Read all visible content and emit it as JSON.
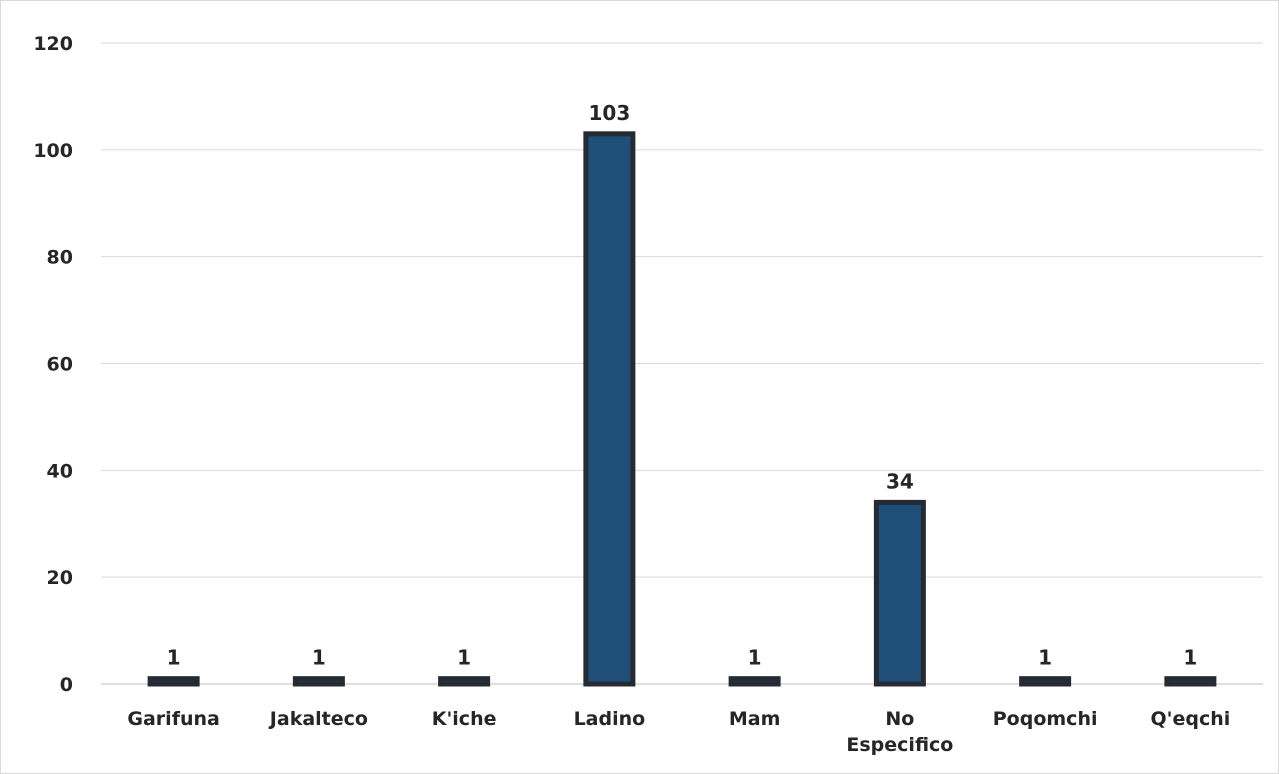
{
  "chart_data": {
    "type": "bar",
    "title": "",
    "xlabel": "",
    "ylabel": "",
    "categories": [
      "Garifuna",
      "Jakalteco",
      "K'iche",
      "Ladino",
      "Mam",
      "No Especifico",
      "Poqomchi",
      "Q'eqchi"
    ],
    "category_lines": [
      [
        "Garifuna"
      ],
      [
        "Jakalteco"
      ],
      [
        "K'iche"
      ],
      [
        "Ladino"
      ],
      [
        "Mam"
      ],
      [
        "No",
        "Especifico"
      ],
      [
        "Poqomchi"
      ],
      [
        "Q'eqchi"
      ]
    ],
    "values": [
      1,
      1,
      1,
      103,
      1,
      34,
      1,
      1
    ],
    "data_labels": [
      "1",
      "1",
      "1",
      "103",
      "1",
      "34",
      "1",
      "1"
    ],
    "ylim": [
      0,
      120
    ],
    "yticks": [
      0,
      20,
      40,
      60,
      80,
      100,
      120
    ],
    "grid": true,
    "legend": "none",
    "colors": {
      "bar_fill": "#1f4e79",
      "bar_stroke": "#262b33",
      "gridline": "#d9d9d9",
      "text": "#262626"
    }
  }
}
